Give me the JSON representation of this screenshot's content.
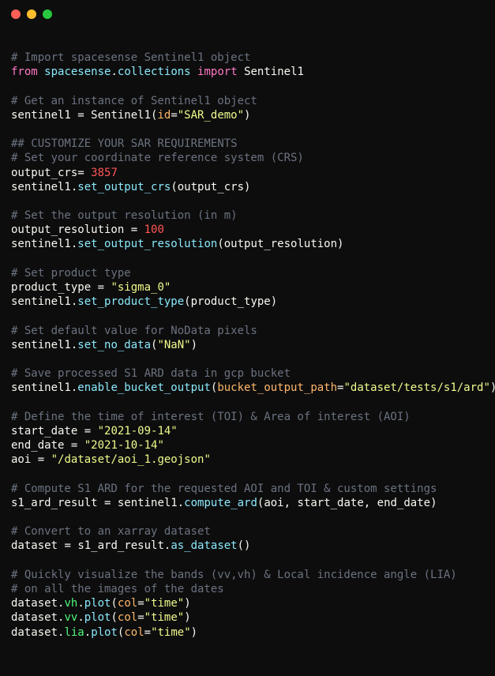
{
  "colors": {
    "comment": "#6b7280",
    "keyword": "#ff79c6",
    "module": "#8be9fd",
    "function": "#8be9fd",
    "variable": "#f8f8f2",
    "operator": "#f8f8f2",
    "punct": "#f8f8f2",
    "number": "#ff5555",
    "string": "#f1fa8c",
    "param": "#ffb86c",
    "class": "#f8f8f2",
    "method": "#8be9fd",
    "attr": "#50fa7b"
  },
  "lines": [
    [
      {
        "t": "# Import spacesense Sentinel1 object",
        "c": "comment"
      }
    ],
    [
      {
        "t": "from",
        "c": "keyword"
      },
      {
        "t": " ",
        "c": "punct"
      },
      {
        "t": "spacesense",
        "c": "module"
      },
      {
        "t": ".",
        "c": "punct"
      },
      {
        "t": "collections",
        "c": "module"
      },
      {
        "t": " ",
        "c": "punct"
      },
      {
        "t": "import",
        "c": "keyword"
      },
      {
        "t": " ",
        "c": "punct"
      },
      {
        "t": "Sentinel1",
        "c": "class"
      }
    ],
    [],
    [
      {
        "t": "# Get an instance of Sentinel1 object",
        "c": "comment"
      }
    ],
    [
      {
        "t": "sentinel1",
        "c": "variable"
      },
      {
        "t": " = ",
        "c": "operator"
      },
      {
        "t": "Sentinel1",
        "c": "class"
      },
      {
        "t": "(",
        "c": "punct"
      },
      {
        "t": "id",
        "c": "param"
      },
      {
        "t": "=",
        "c": "operator"
      },
      {
        "t": "\"SAR_demo\"",
        "c": "string"
      },
      {
        "t": ")",
        "c": "punct"
      }
    ],
    [],
    [
      {
        "t": "## CUSTOMIZE YOUR SAR REQUIREMENTS",
        "c": "comment"
      }
    ],
    [
      {
        "t": "# Set your coordinate reference system (CRS)",
        "c": "comment"
      }
    ],
    [
      {
        "t": "output_crs",
        "c": "variable"
      },
      {
        "t": "= ",
        "c": "operator"
      },
      {
        "t": "3857",
        "c": "number"
      }
    ],
    [
      {
        "t": "sentinel1",
        "c": "variable"
      },
      {
        "t": ".",
        "c": "punct"
      },
      {
        "t": "set_output_crs",
        "c": "method"
      },
      {
        "t": "(",
        "c": "punct"
      },
      {
        "t": "output_crs",
        "c": "variable"
      },
      {
        "t": ")",
        "c": "punct"
      }
    ],
    [],
    [
      {
        "t": "# Set the output resolution (in m)",
        "c": "comment"
      }
    ],
    [
      {
        "t": "output_resolution",
        "c": "variable"
      },
      {
        "t": " = ",
        "c": "operator"
      },
      {
        "t": "100",
        "c": "number"
      }
    ],
    [
      {
        "t": "sentinel1",
        "c": "variable"
      },
      {
        "t": ".",
        "c": "punct"
      },
      {
        "t": "set_output_resolution",
        "c": "method"
      },
      {
        "t": "(",
        "c": "punct"
      },
      {
        "t": "output_resolution",
        "c": "variable"
      },
      {
        "t": ")",
        "c": "punct"
      }
    ],
    [],
    [
      {
        "t": "# Set product type",
        "c": "comment"
      }
    ],
    [
      {
        "t": "product_type",
        "c": "variable"
      },
      {
        "t": " = ",
        "c": "operator"
      },
      {
        "t": "\"sigma_0\"",
        "c": "string"
      }
    ],
    [
      {
        "t": "sentinel1",
        "c": "variable"
      },
      {
        "t": ".",
        "c": "punct"
      },
      {
        "t": "set_product_type",
        "c": "method"
      },
      {
        "t": "(",
        "c": "punct"
      },
      {
        "t": "product_type",
        "c": "variable"
      },
      {
        "t": ")",
        "c": "punct"
      }
    ],
    [],
    [
      {
        "t": "# Set default value for NoData pixels",
        "c": "comment"
      }
    ],
    [
      {
        "t": "sentinel1",
        "c": "variable"
      },
      {
        "t": ".",
        "c": "punct"
      },
      {
        "t": "set_no_data",
        "c": "method"
      },
      {
        "t": "(",
        "c": "punct"
      },
      {
        "t": "\"NaN\"",
        "c": "string"
      },
      {
        "t": ")",
        "c": "punct"
      }
    ],
    [],
    [
      {
        "t": "# Save processed S1 ARD data in gcp bucket",
        "c": "comment"
      }
    ],
    [
      {
        "t": "sentinel1",
        "c": "variable"
      },
      {
        "t": ".",
        "c": "punct"
      },
      {
        "t": "enable_bucket_output",
        "c": "method"
      },
      {
        "t": "(",
        "c": "punct"
      },
      {
        "t": "bucket_output_path",
        "c": "param"
      },
      {
        "t": "=",
        "c": "operator"
      },
      {
        "t": "\"dataset/tests/s1/ard\"",
        "c": "string"
      },
      {
        "t": ")",
        "c": "punct"
      }
    ],
    [],
    [
      {
        "t": "# Define the time of interest (TOI) & Area of interest (AOI)",
        "c": "comment"
      }
    ],
    [
      {
        "t": "start_date",
        "c": "variable"
      },
      {
        "t": " = ",
        "c": "operator"
      },
      {
        "t": "\"2021-09-14\"",
        "c": "string"
      }
    ],
    [
      {
        "t": "end_date",
        "c": "variable"
      },
      {
        "t": " = ",
        "c": "operator"
      },
      {
        "t": "\"2021-10-14\"",
        "c": "string"
      }
    ],
    [
      {
        "t": "aoi",
        "c": "variable"
      },
      {
        "t": " = ",
        "c": "operator"
      },
      {
        "t": "\"/dataset/aoi_1.geojson\"",
        "c": "string"
      }
    ],
    [],
    [
      {
        "t": "# Compute S1 ARD for the requested AOI and TOI & custom settings",
        "c": "comment"
      }
    ],
    [
      {
        "t": "s1_ard_result",
        "c": "variable"
      },
      {
        "t": " = ",
        "c": "operator"
      },
      {
        "t": "sentinel1",
        "c": "variable"
      },
      {
        "t": ".",
        "c": "punct"
      },
      {
        "t": "compute_ard",
        "c": "method"
      },
      {
        "t": "(",
        "c": "punct"
      },
      {
        "t": "aoi",
        "c": "variable"
      },
      {
        "t": ", ",
        "c": "punct"
      },
      {
        "t": "start_date",
        "c": "variable"
      },
      {
        "t": ", ",
        "c": "punct"
      },
      {
        "t": "end_date",
        "c": "variable"
      },
      {
        "t": ")",
        "c": "punct"
      }
    ],
    [],
    [
      {
        "t": "# Convert to an xarray dataset",
        "c": "comment"
      }
    ],
    [
      {
        "t": "dataset",
        "c": "variable"
      },
      {
        "t": " = ",
        "c": "operator"
      },
      {
        "t": "s1_ard_result",
        "c": "variable"
      },
      {
        "t": ".",
        "c": "punct"
      },
      {
        "t": "as_dataset",
        "c": "method"
      },
      {
        "t": "()",
        "c": "punct"
      }
    ],
    [],
    [
      {
        "t": "# Quickly visualize the bands (vv,vh) & Local incidence angle (LIA)",
        "c": "comment"
      }
    ],
    [
      {
        "t": "# on all the images of the dates",
        "c": "comment"
      }
    ],
    [
      {
        "t": "dataset",
        "c": "variable"
      },
      {
        "t": ".",
        "c": "punct"
      },
      {
        "t": "vh",
        "c": "attr"
      },
      {
        "t": ".",
        "c": "punct"
      },
      {
        "t": "plot",
        "c": "method"
      },
      {
        "t": "(",
        "c": "punct"
      },
      {
        "t": "col",
        "c": "param"
      },
      {
        "t": "=",
        "c": "operator"
      },
      {
        "t": "\"time\"",
        "c": "string"
      },
      {
        "t": ")",
        "c": "punct"
      }
    ],
    [
      {
        "t": "dataset",
        "c": "variable"
      },
      {
        "t": ".",
        "c": "punct"
      },
      {
        "t": "vv",
        "c": "attr"
      },
      {
        "t": ".",
        "c": "punct"
      },
      {
        "t": "plot",
        "c": "method"
      },
      {
        "t": "(",
        "c": "punct"
      },
      {
        "t": "col",
        "c": "param"
      },
      {
        "t": "=",
        "c": "operator"
      },
      {
        "t": "\"time\"",
        "c": "string"
      },
      {
        "t": ")",
        "c": "punct"
      }
    ],
    [
      {
        "t": "dataset",
        "c": "variable"
      },
      {
        "t": ".",
        "c": "punct"
      },
      {
        "t": "lia",
        "c": "attr"
      },
      {
        "t": ".",
        "c": "punct"
      },
      {
        "t": "plot",
        "c": "method"
      },
      {
        "t": "(",
        "c": "punct"
      },
      {
        "t": "col",
        "c": "param"
      },
      {
        "t": "=",
        "c": "operator"
      },
      {
        "t": "\"time\"",
        "c": "string"
      },
      {
        "t": ")",
        "c": "punct"
      }
    ]
  ]
}
